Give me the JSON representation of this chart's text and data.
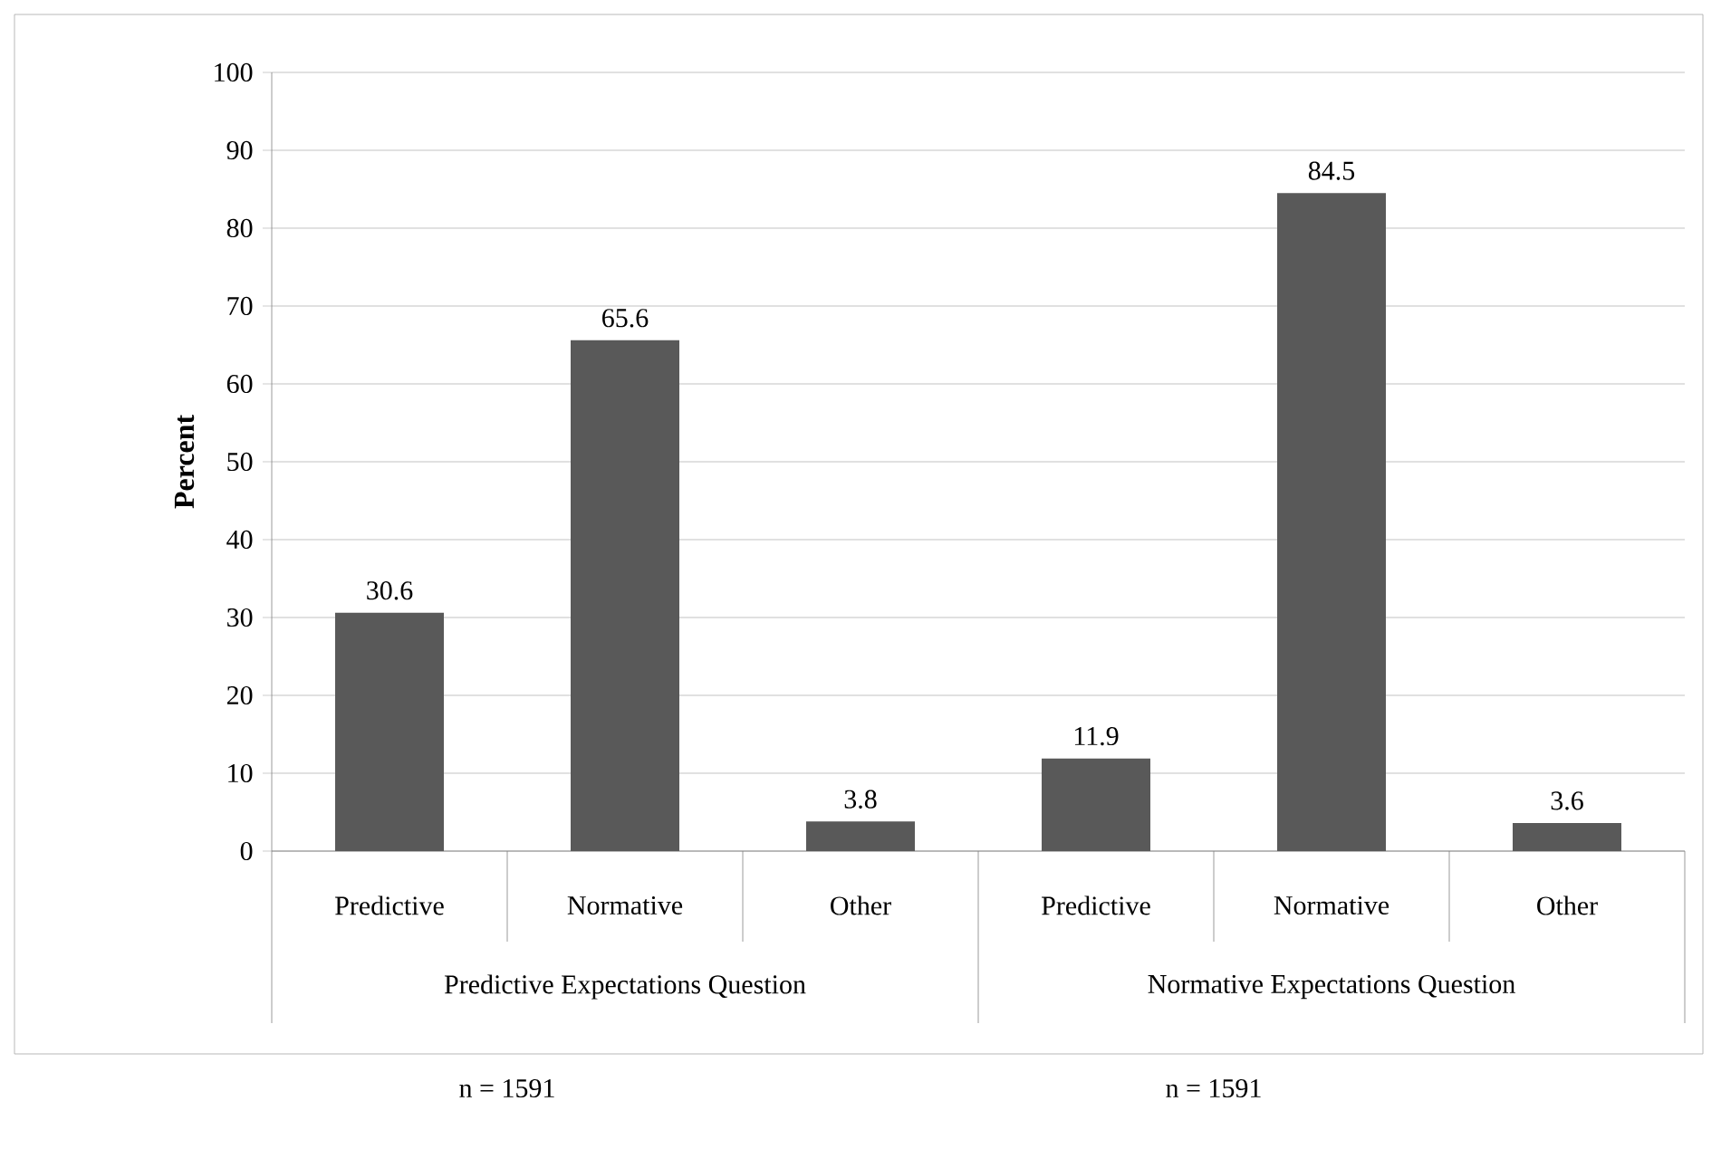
{
  "chart_data": {
    "type": "bar",
    "ylabel": "Percent",
    "categories": [
      "Predictive",
      "Normative",
      "Other",
      "Predictive",
      "Normative",
      "Other"
    ],
    "values": [
      30.6,
      65.6,
      3.8,
      11.9,
      84.5,
      3.6
    ],
    "color": "#595959",
    "ylim": [
      0,
      100
    ],
    "yticks": [
      0,
      10,
      20,
      30,
      40,
      50,
      60,
      70,
      80,
      90,
      100
    ],
    "grid": "y",
    "data_labels": true,
    "annotations": [
      "Predictive Expectations Question",
      "Normative Expectations Question",
      "n = 1591",
      "n = 1591"
    ]
  }
}
